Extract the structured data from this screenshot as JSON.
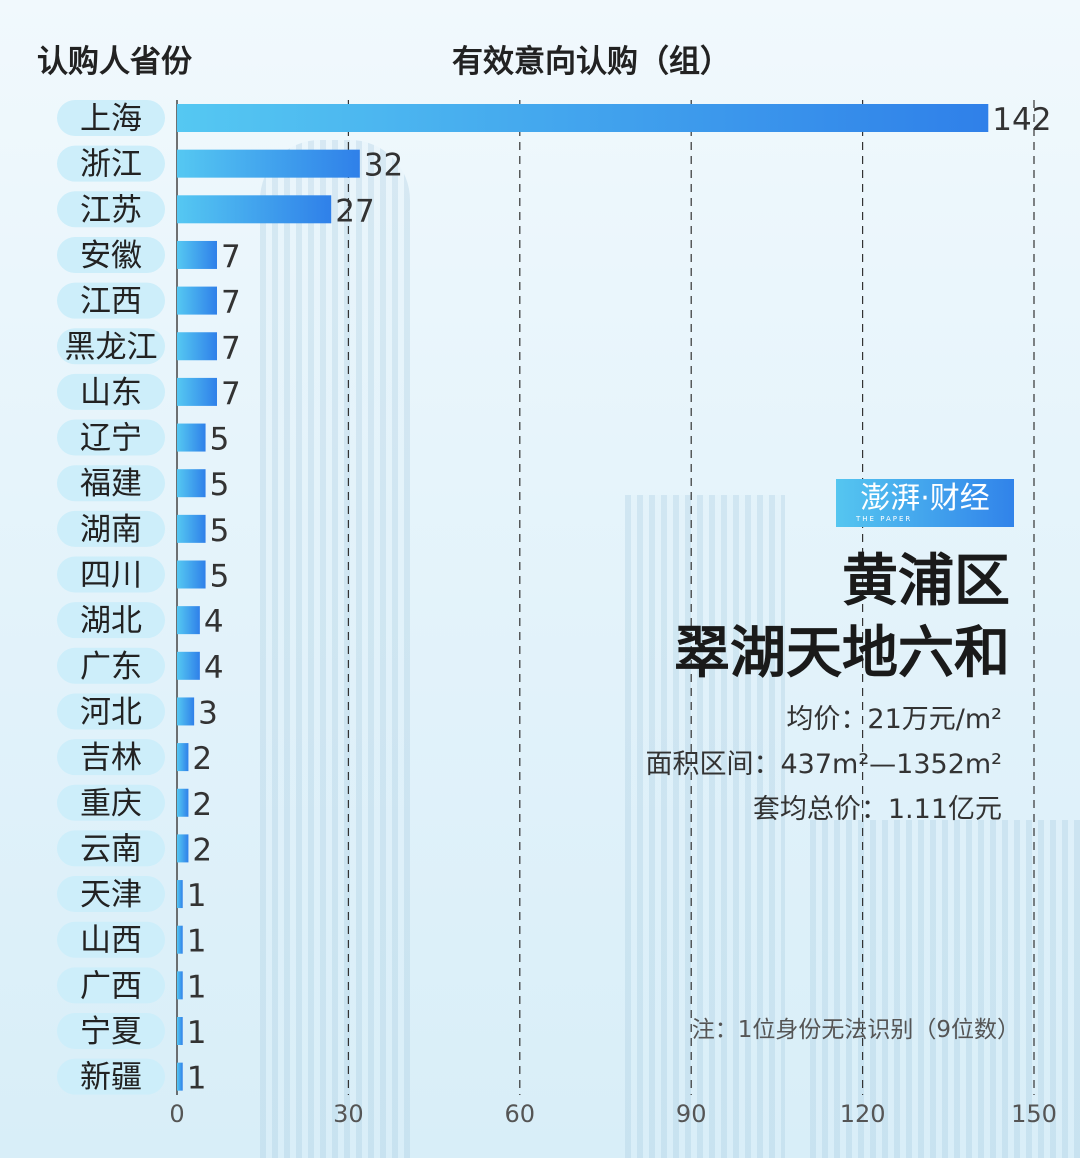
{
  "header": {
    "left_title": "认购人省份",
    "center_title": "有效意向认购（组）"
  },
  "logo": {
    "text": "澎湃·财经",
    "subtext": "THE PAPER"
  },
  "project": {
    "district": "黄浦区",
    "name": "翠湖天地六和"
  },
  "info": {
    "avg_price": "均价：21万元/m²",
    "area_range": "面积区间：437m²—1352m²",
    "avg_total": "套均总价：1.11亿元"
  },
  "note": "注：1位身份无法识别（9位数）",
  "colors": {
    "bar_start": "#55c8f2",
    "bar_end": "#2f80e9",
    "pill": "#cdeefa"
  },
  "chart_data": {
    "type": "bar",
    "orientation": "horizontal",
    "categories": [
      "上海",
      "浙江",
      "江苏",
      "安徽",
      "江西",
      "黑龙江",
      "山东",
      "辽宁",
      "福建",
      "湖南",
      "四川",
      "湖北",
      "广东",
      "河北",
      "吉林",
      "重庆",
      "云南",
      "天津",
      "山西",
      "广西",
      "宁夏",
      "新疆"
    ],
    "values": [
      142,
      32,
      27,
      7,
      7,
      7,
      7,
      5,
      5,
      5,
      5,
      4,
      4,
      3,
      2,
      2,
      2,
      1,
      1,
      1,
      1,
      1
    ],
    "xlim": [
      0,
      150
    ],
    "xticks": [
      "0",
      "30",
      "60",
      "90",
      "120",
      "150"
    ],
    "grid": true,
    "grid_style": "dashed vertical"
  }
}
